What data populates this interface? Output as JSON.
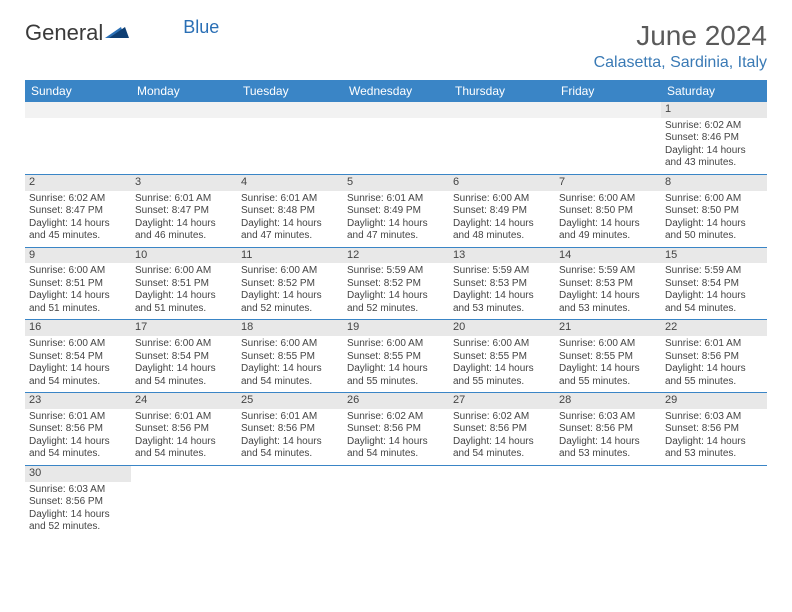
{
  "brand": {
    "part1": "General",
    "part2": "Blue"
  },
  "title": "June 2024",
  "location": "Calasetta, Sardinia, Italy",
  "colors": {
    "header_bg": "#3a85c6",
    "header_fg": "#ffffff",
    "row_border": "#3a85c6",
    "daynum_bg": "#e8e8e8",
    "brand_blue": "#2a6fb5",
    "brand_dark": "#3a3a3a"
  },
  "weekdays": [
    "Sunday",
    "Monday",
    "Tuesday",
    "Wednesday",
    "Thursday",
    "Friday",
    "Saturday"
  ],
  "weeks": [
    [
      {
        "n": "",
        "blank": true
      },
      {
        "n": "",
        "blank": true
      },
      {
        "n": "",
        "blank": true
      },
      {
        "n": "",
        "blank": true
      },
      {
        "n": "",
        "blank": true
      },
      {
        "n": "",
        "blank": true
      },
      {
        "n": "1",
        "sr": "Sunrise: 6:02 AM",
        "ss": "Sunset: 8:46 PM",
        "d1": "Daylight: 14 hours",
        "d2": "and 43 minutes."
      }
    ],
    [
      {
        "n": "2",
        "sr": "Sunrise: 6:02 AM",
        "ss": "Sunset: 8:47 PM",
        "d1": "Daylight: 14 hours",
        "d2": "and 45 minutes."
      },
      {
        "n": "3",
        "sr": "Sunrise: 6:01 AM",
        "ss": "Sunset: 8:47 PM",
        "d1": "Daylight: 14 hours",
        "d2": "and 46 minutes."
      },
      {
        "n": "4",
        "sr": "Sunrise: 6:01 AM",
        "ss": "Sunset: 8:48 PM",
        "d1": "Daylight: 14 hours",
        "d2": "and 47 minutes."
      },
      {
        "n": "5",
        "sr": "Sunrise: 6:01 AM",
        "ss": "Sunset: 8:49 PM",
        "d1": "Daylight: 14 hours",
        "d2": "and 47 minutes."
      },
      {
        "n": "6",
        "sr": "Sunrise: 6:00 AM",
        "ss": "Sunset: 8:49 PM",
        "d1": "Daylight: 14 hours",
        "d2": "and 48 minutes."
      },
      {
        "n": "7",
        "sr": "Sunrise: 6:00 AM",
        "ss": "Sunset: 8:50 PM",
        "d1": "Daylight: 14 hours",
        "d2": "and 49 minutes."
      },
      {
        "n": "8",
        "sr": "Sunrise: 6:00 AM",
        "ss": "Sunset: 8:50 PM",
        "d1": "Daylight: 14 hours",
        "d2": "and 50 minutes."
      }
    ],
    [
      {
        "n": "9",
        "sr": "Sunrise: 6:00 AM",
        "ss": "Sunset: 8:51 PM",
        "d1": "Daylight: 14 hours",
        "d2": "and 51 minutes."
      },
      {
        "n": "10",
        "sr": "Sunrise: 6:00 AM",
        "ss": "Sunset: 8:51 PM",
        "d1": "Daylight: 14 hours",
        "d2": "and 51 minutes."
      },
      {
        "n": "11",
        "sr": "Sunrise: 6:00 AM",
        "ss": "Sunset: 8:52 PM",
        "d1": "Daylight: 14 hours",
        "d2": "and 52 minutes."
      },
      {
        "n": "12",
        "sr": "Sunrise: 5:59 AM",
        "ss": "Sunset: 8:52 PM",
        "d1": "Daylight: 14 hours",
        "d2": "and 52 minutes."
      },
      {
        "n": "13",
        "sr": "Sunrise: 5:59 AM",
        "ss": "Sunset: 8:53 PM",
        "d1": "Daylight: 14 hours",
        "d2": "and 53 minutes."
      },
      {
        "n": "14",
        "sr": "Sunrise: 5:59 AM",
        "ss": "Sunset: 8:53 PM",
        "d1": "Daylight: 14 hours",
        "d2": "and 53 minutes."
      },
      {
        "n": "15",
        "sr": "Sunrise: 5:59 AM",
        "ss": "Sunset: 8:54 PM",
        "d1": "Daylight: 14 hours",
        "d2": "and 54 minutes."
      }
    ],
    [
      {
        "n": "16",
        "sr": "Sunrise: 6:00 AM",
        "ss": "Sunset: 8:54 PM",
        "d1": "Daylight: 14 hours",
        "d2": "and 54 minutes."
      },
      {
        "n": "17",
        "sr": "Sunrise: 6:00 AM",
        "ss": "Sunset: 8:54 PM",
        "d1": "Daylight: 14 hours",
        "d2": "and 54 minutes."
      },
      {
        "n": "18",
        "sr": "Sunrise: 6:00 AM",
        "ss": "Sunset: 8:55 PM",
        "d1": "Daylight: 14 hours",
        "d2": "and 54 minutes."
      },
      {
        "n": "19",
        "sr": "Sunrise: 6:00 AM",
        "ss": "Sunset: 8:55 PM",
        "d1": "Daylight: 14 hours",
        "d2": "and 55 minutes."
      },
      {
        "n": "20",
        "sr": "Sunrise: 6:00 AM",
        "ss": "Sunset: 8:55 PM",
        "d1": "Daylight: 14 hours",
        "d2": "and 55 minutes."
      },
      {
        "n": "21",
        "sr": "Sunrise: 6:00 AM",
        "ss": "Sunset: 8:55 PM",
        "d1": "Daylight: 14 hours",
        "d2": "and 55 minutes."
      },
      {
        "n": "22",
        "sr": "Sunrise: 6:01 AM",
        "ss": "Sunset: 8:56 PM",
        "d1": "Daylight: 14 hours",
        "d2": "and 55 minutes."
      }
    ],
    [
      {
        "n": "23",
        "sr": "Sunrise: 6:01 AM",
        "ss": "Sunset: 8:56 PM",
        "d1": "Daylight: 14 hours",
        "d2": "and 54 minutes."
      },
      {
        "n": "24",
        "sr": "Sunrise: 6:01 AM",
        "ss": "Sunset: 8:56 PM",
        "d1": "Daylight: 14 hours",
        "d2": "and 54 minutes."
      },
      {
        "n": "25",
        "sr": "Sunrise: 6:01 AM",
        "ss": "Sunset: 8:56 PM",
        "d1": "Daylight: 14 hours",
        "d2": "and 54 minutes."
      },
      {
        "n": "26",
        "sr": "Sunrise: 6:02 AM",
        "ss": "Sunset: 8:56 PM",
        "d1": "Daylight: 14 hours",
        "d2": "and 54 minutes."
      },
      {
        "n": "27",
        "sr": "Sunrise: 6:02 AM",
        "ss": "Sunset: 8:56 PM",
        "d1": "Daylight: 14 hours",
        "d2": "and 54 minutes."
      },
      {
        "n": "28",
        "sr": "Sunrise: 6:03 AM",
        "ss": "Sunset: 8:56 PM",
        "d1": "Daylight: 14 hours",
        "d2": "and 53 minutes."
      },
      {
        "n": "29",
        "sr": "Sunrise: 6:03 AM",
        "ss": "Sunset: 8:56 PM",
        "d1": "Daylight: 14 hours",
        "d2": "and 53 minutes."
      }
    ],
    [
      {
        "n": "30",
        "sr": "Sunrise: 6:03 AM",
        "ss": "Sunset: 8:56 PM",
        "d1": "Daylight: 14 hours",
        "d2": "and 52 minutes."
      },
      {
        "n": "",
        "blank": true
      },
      {
        "n": "",
        "blank": true
      },
      {
        "n": "",
        "blank": true
      },
      {
        "n": "",
        "blank": true
      },
      {
        "n": "",
        "blank": true
      },
      {
        "n": "",
        "blank": true
      }
    ]
  ]
}
